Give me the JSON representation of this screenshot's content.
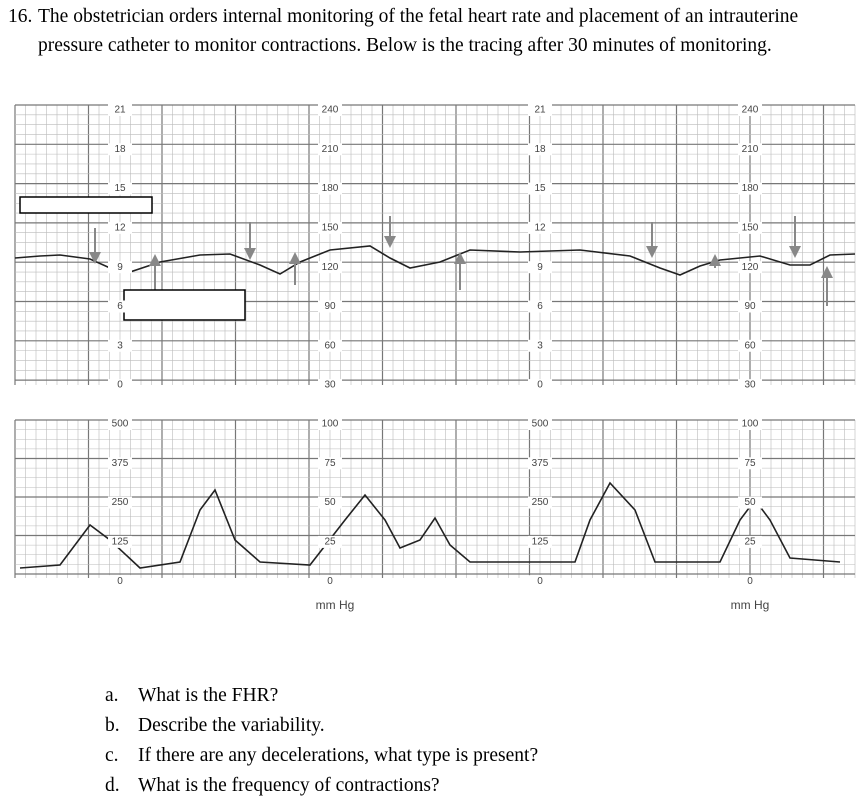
{
  "question": {
    "number": "16.",
    "text": "The obstetrician orders internal monitoring of the fetal heart rate and placement of an intrauterine pressure catheter to monitor contractions. Below is the tracing after 30 minutes of monitoring."
  },
  "upper_strip": {
    "scale_columns": [
      [
        "21",
        "18",
        "15",
        "12",
        "9",
        "6",
        "3",
        "0"
      ],
      [
        "240",
        "210",
        "180",
        "150",
        "120",
        "90",
        "60",
        "30"
      ],
      [
        "21",
        "18",
        "15",
        "12",
        "9",
        "6",
        "3",
        "0"
      ],
      [
        "240",
        "210",
        "180",
        "150",
        "120",
        "90",
        "60",
        "30"
      ]
    ]
  },
  "lower_strip": {
    "scale_columns": [
      [
        "500",
        "375",
        "250",
        "125",
        "0"
      ],
      [
        "100",
        "75",
        "50",
        "25",
        "0"
      ],
      [
        "500",
        "375",
        "250",
        "125",
        "0"
      ],
      [
        "100",
        "75",
        "50",
        "25",
        "0"
      ]
    ],
    "unit_labels": [
      "mm Hg",
      "mm Hg"
    ]
  },
  "questions": [
    {
      "letter": "a.",
      "text": "What is the FHR?"
    },
    {
      "letter": "b.",
      "text": "Describe the variability."
    },
    {
      "letter": "c.",
      "text": "If there are any decelerations, what type is present?"
    },
    {
      "letter": "d.",
      "text": "What is the frequency of contractions?"
    }
  ]
}
